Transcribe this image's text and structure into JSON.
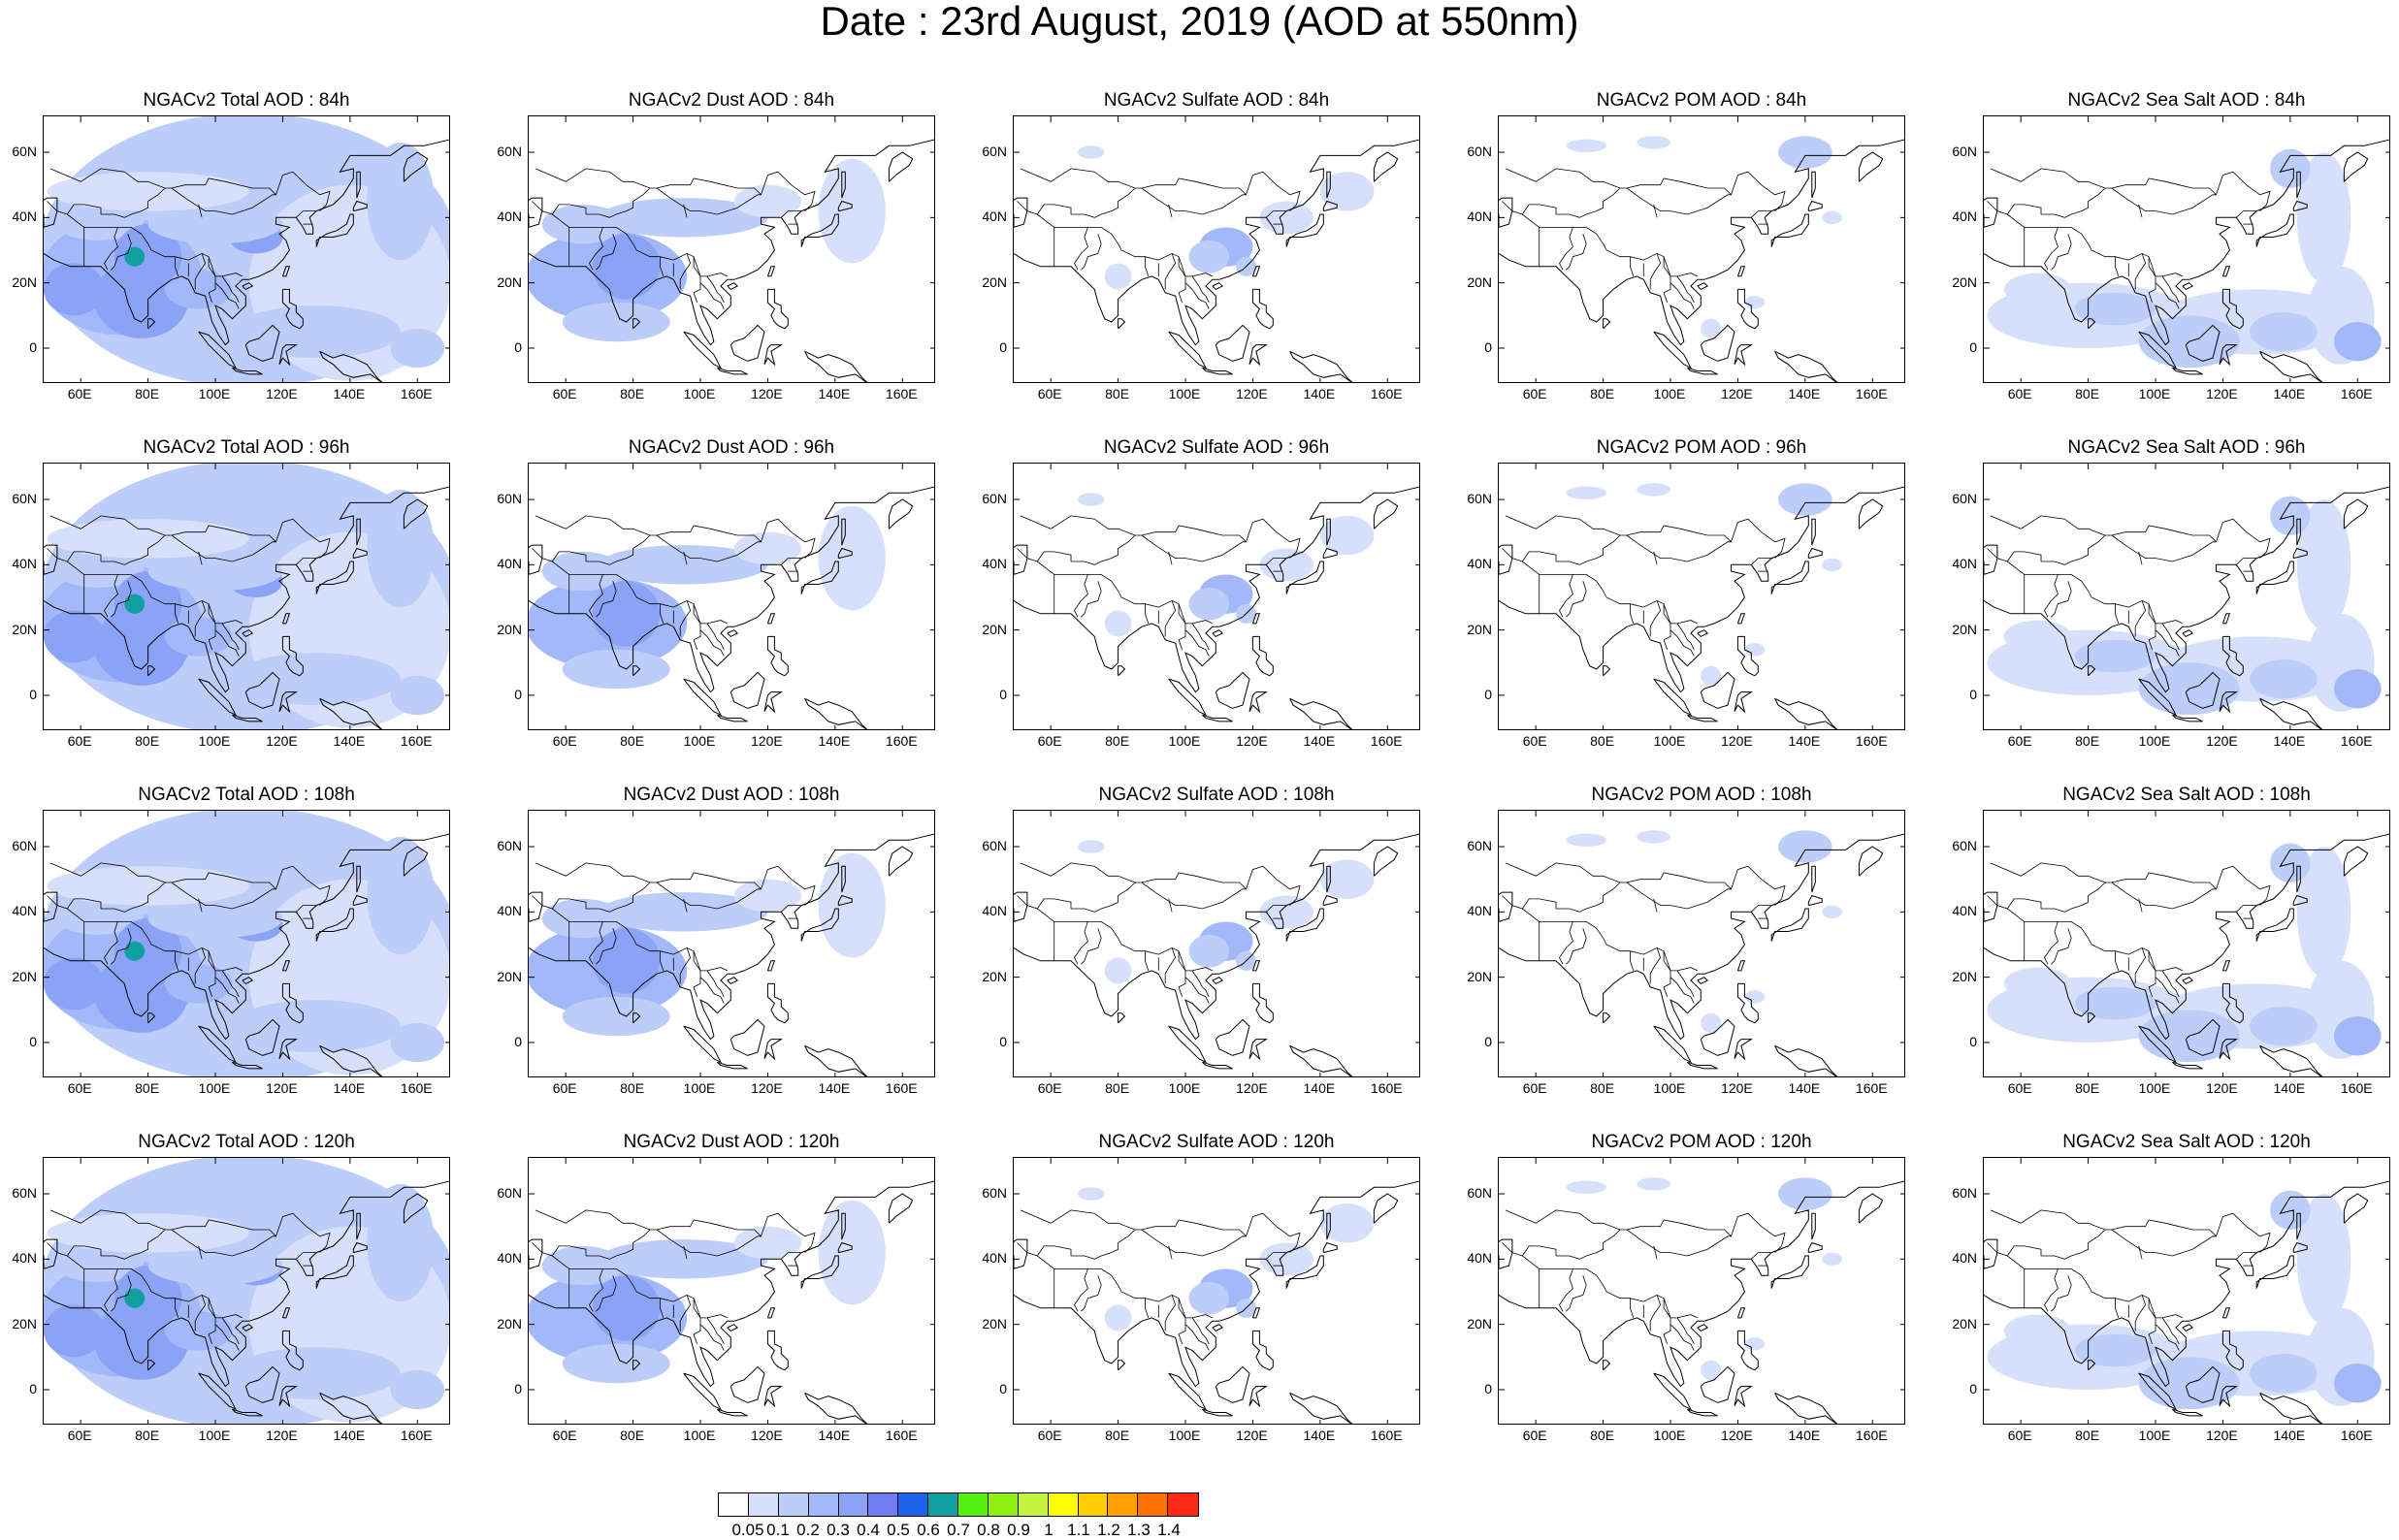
{
  "title": "Date : 23rd August, 2019 (AOD at 550nm)",
  "x_ticks": [
    "60E",
    "80E",
    "100E",
    "120E",
    "140E",
    "160E"
  ],
  "y_ticks": [
    "60N",
    "40N",
    "20N",
    "0"
  ],
  "panels": [
    [
      {
        "title": "NGACv2 Total AOD : 84h",
        "species": "total"
      },
      {
        "title": "NGACv2 Dust AOD : 84h",
        "species": "dust"
      },
      {
        "title": "NGACv2 Sulfate AOD : 84h",
        "species": "sulfate"
      },
      {
        "title": "NGACv2 POM AOD : 84h",
        "species": "pom"
      },
      {
        "title": "NGACv2 Sea Salt AOD : 84h",
        "species": "seasalt"
      }
    ],
    [
      {
        "title": "NGACv2 Total AOD : 96h",
        "species": "total"
      },
      {
        "title": "NGACv2 Dust AOD : 96h",
        "species": "dust"
      },
      {
        "title": "NGACv2 Sulfate AOD : 96h",
        "species": "sulfate"
      },
      {
        "title": "NGACv2 POM AOD : 96h",
        "species": "pom"
      },
      {
        "title": "NGACv2 Sea Salt AOD : 96h",
        "species": "seasalt"
      }
    ],
    [
      {
        "title": "NGACv2 Total AOD : 108h",
        "species": "total"
      },
      {
        "title": "NGACv2 Dust AOD : 108h",
        "species": "dust"
      },
      {
        "title": "NGACv2 Sulfate AOD : 108h",
        "species": "sulfate"
      },
      {
        "title": "NGACv2 POM AOD : 108h",
        "species": "pom"
      },
      {
        "title": "NGACv2 Sea Salt AOD : 108h",
        "species": "seasalt"
      }
    ],
    [
      {
        "title": "NGACv2 Total AOD : 120h",
        "species": "total"
      },
      {
        "title": "NGACv2 Dust AOD : 120h",
        "species": "dust"
      },
      {
        "title": "NGACv2 Sulfate AOD : 120h",
        "species": "sulfate"
      },
      {
        "title": "NGACv2 POM AOD : 120h",
        "species": "pom"
      },
      {
        "title": "NGACv2 Sea Salt  AOD : 120h",
        "species": "seasalt"
      }
    ]
  ],
  "colorbar": {
    "colors": [
      "#ffffff",
      "#d7e0fb",
      "#bccdfa",
      "#a3b8f8",
      "#8ba3f6",
      "#6f7cf2",
      "#1c64ea",
      "#11a0a0",
      "#55f00f",
      "#8ff00f",
      "#c6f540",
      "#ffff00",
      "#ffcc00",
      "#ff9f00",
      "#ff7000",
      "#ff2a14"
    ],
    "labels": [
      "0.05",
      "0.1",
      "0.2",
      "0.3",
      "0.4",
      "0.5",
      "0.6",
      "0.7",
      "0.8",
      "0.9",
      "1",
      "1.1",
      "1.2",
      "1.3",
      "1.4"
    ]
  }
}
